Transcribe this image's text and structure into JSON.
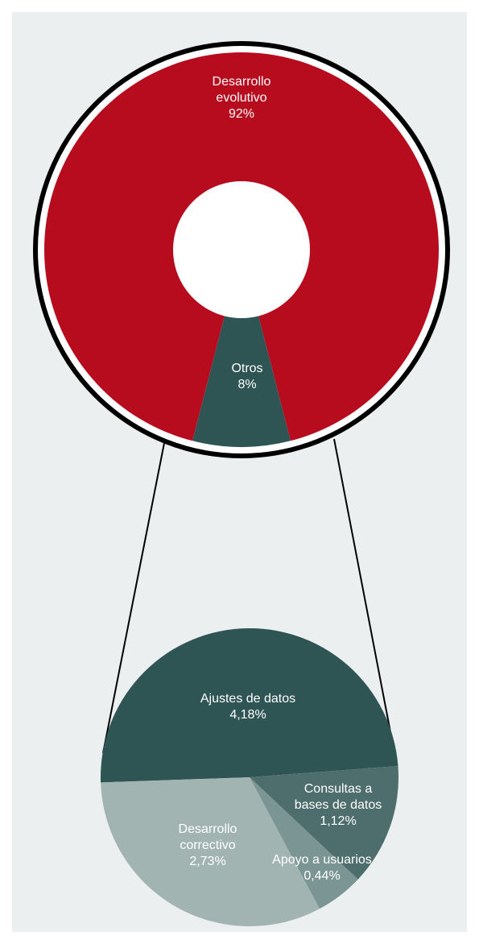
{
  "chart_data": [
    {
      "type": "donut",
      "categories": [
        "Desarrollo evolutivo",
        "Otros"
      ],
      "values": [
        92,
        8
      ],
      "value_labels": [
        "92%",
        "8%"
      ],
      "colors": [
        "#b70c1e",
        "#2e5454"
      ]
    },
    {
      "type": "pie",
      "categories": [
        "Ajustes de datos",
        "Consultas a bases de datos",
        "Apoyo a usuarios",
        "Desarrollo correctivo"
      ],
      "values": [
        4.18,
        1.12,
        0.44,
        2.73
      ],
      "value_labels": [
        "4,18%",
        "1,12%",
        "0,44%",
        "2,73%"
      ],
      "colors": [
        "#2e5454",
        "#4d6e6c",
        "#7a9593",
        "#a2b4b2"
      ]
    }
  ]
}
